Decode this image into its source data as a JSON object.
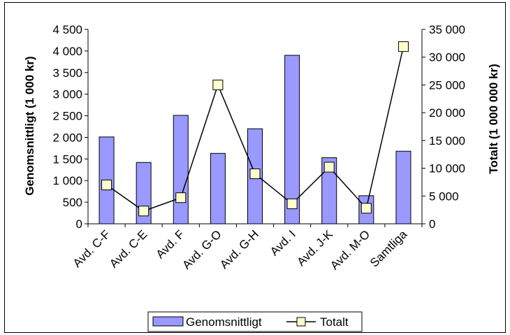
{
  "chart_data": {
    "type": "bar",
    "categories": [
      "Avd. C-F",
      "Avd. C-E",
      "Avd. F",
      "Avd. G-O",
      "Avd. G-H",
      "Avd. I",
      "Avd. J-K",
      "Avd. M-O",
      "Samtliga"
    ],
    "series": [
      {
        "name": "Genomsnittligt",
        "type": "bar",
        "axis": "left",
        "values": [
          2010,
          1420,
          2510,
          1630,
          2200,
          3900,
          1530,
          650,
          1680
        ]
      },
      {
        "name": "Totalt",
        "type": "line",
        "axis": "right",
        "values": [
          7000,
          2300,
          4700,
          25000,
          9000,
          3600,
          10200,
          2800,
          31900
        ]
      }
    ],
    "ylabel": "Genomsnittligt (1 000 kr)",
    "y2label": "Totalt (1 000 000 kr)",
    "ylim": [
      0,
      4500
    ],
    "y2lim": [
      0,
      35000
    ],
    "yticks": [
      "0",
      "500",
      "1 000",
      "1 500",
      "2 000",
      "2 500",
      "3 000",
      "3 500",
      "4 000",
      "4 500"
    ],
    "y2ticks": [
      "0",
      "5 000",
      "10 000",
      "15 000",
      "20 000",
      "25 000",
      "30 000",
      "35 000"
    ],
    "legend_position": "bottom",
    "colors": {
      "bar_fill": "#9999ff",
      "bar_stroke": "#000000",
      "marker_fill": "#ffffcc",
      "line": "#000000"
    }
  }
}
